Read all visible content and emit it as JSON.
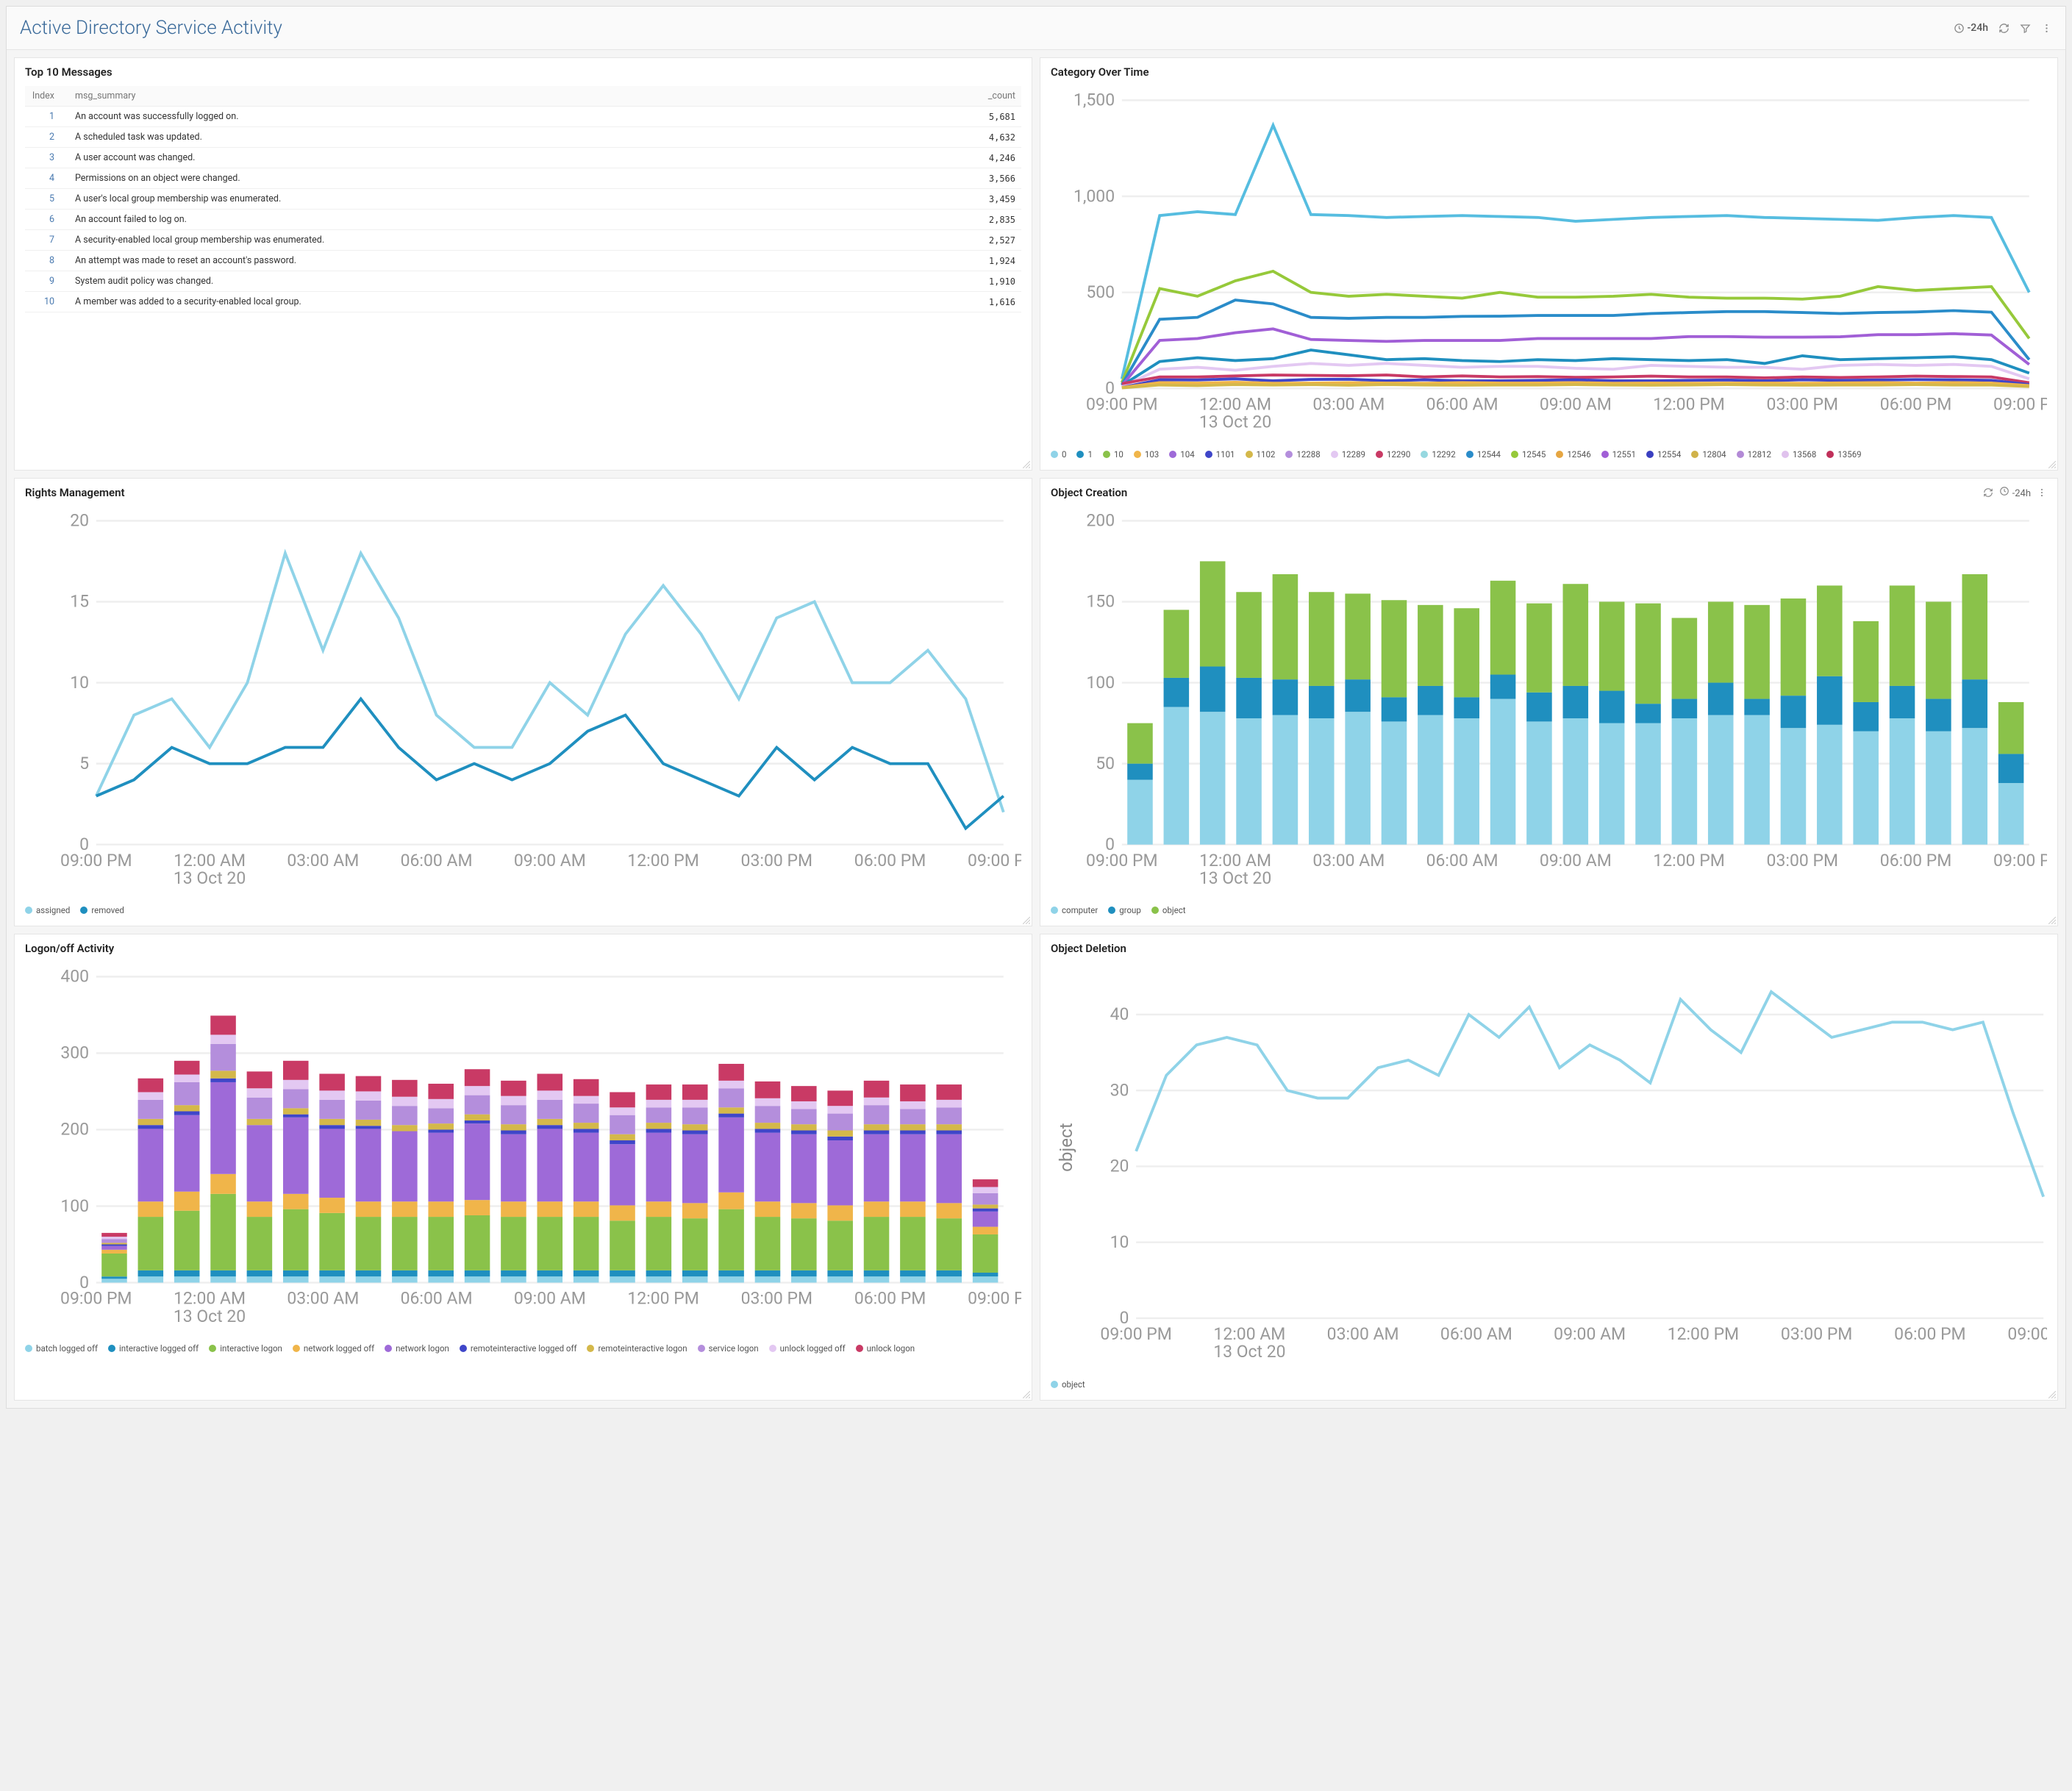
{
  "header": {
    "title": "Active Directory Service Activity",
    "time_range": "-24h"
  },
  "time_axis": {
    "labels": [
      "09:00 PM",
      "12:00 AM",
      "03:00 AM",
      "06:00 AM",
      "09:00 AM",
      "12:00 PM",
      "03:00 PM",
      "06:00 PM",
      "09:00 PM"
    ],
    "sub_label": "13 Oct 20"
  },
  "panels": {
    "top_messages": {
      "title": "Top 10 Messages",
      "columns": [
        "Index",
        "msg_summary",
        "_count"
      ],
      "rows": [
        [
          1,
          "An account was successfully logged on.",
          "5,681"
        ],
        [
          2,
          "A scheduled task was updated.",
          "4,632"
        ],
        [
          3,
          "A user account was changed.",
          "4,246"
        ],
        [
          4,
          "Permissions on an object were changed.",
          "3,566"
        ],
        [
          5,
          "A user's local group membership was enumerated.",
          "3,459"
        ],
        [
          6,
          "An account failed to log on.",
          "2,835"
        ],
        [
          7,
          "A security-enabled local group membership was enumerated.",
          "2,527"
        ],
        [
          8,
          "An attempt was made to reset an account's password.",
          "1,924"
        ],
        [
          9,
          "System audit policy was changed.",
          "1,910"
        ],
        [
          10,
          "A member was added to a security-enabled local group.",
          "1,616"
        ]
      ]
    },
    "category_over_time": {
      "title": "Category Over Time",
      "type": "line",
      "ylim": [
        0,
        1500
      ],
      "ytick_step": 500,
      "legend": [
        {
          "label": "0",
          "color": "#8fd3e8"
        },
        {
          "label": "1",
          "color": "#1f8fbf"
        },
        {
          "label": "10",
          "color": "#8ac24a"
        },
        {
          "label": "103",
          "color": "#f0b54a"
        },
        {
          "label": "104",
          "color": "#9e6ad8"
        },
        {
          "label": "1101",
          "color": "#3f46c9"
        },
        {
          "label": "1102",
          "color": "#d4b84a"
        },
        {
          "label": "12288",
          "color": "#b48edc"
        },
        {
          "label": "12289",
          "color": "#e3c8f2"
        },
        {
          "label": "12290",
          "color": "#c93a65"
        },
        {
          "label": "12292",
          "color": "#96d8e0"
        },
        {
          "label": "12544",
          "color": "#2a8cc9"
        },
        {
          "label": "12545",
          "color": "#96c93a"
        },
        {
          "label": "12546",
          "color": "#e6a642"
        },
        {
          "label": "12551",
          "color": "#a15fd6"
        },
        {
          "label": "12554",
          "color": "#3a3fc0"
        },
        {
          "label": "12804",
          "color": "#d0b24a"
        },
        {
          "label": "12812",
          "color": "#b38ad6"
        },
        {
          "label": "13568",
          "color": "#e0c2ed"
        },
        {
          "label": "13569",
          "color": "#c0305a"
        }
      ],
      "series": [
        {
          "color": "#56bde0",
          "data": [
            50,
            900,
            920,
            905,
            1370,
            905,
            900,
            890,
            895,
            900,
            895,
            890,
            870,
            880,
            890,
            895,
            900,
            890,
            885,
            880,
            875,
            890,
            900,
            890,
            500
          ]
        },
        {
          "color": "#96c93a",
          "data": [
            30,
            520,
            480,
            560,
            610,
            500,
            480,
            490,
            480,
            470,
            500,
            475,
            475,
            480,
            490,
            475,
            470,
            470,
            465,
            480,
            530,
            510,
            520,
            530,
            260
          ]
        },
        {
          "color": "#2a8cc9",
          "data": [
            20,
            360,
            370,
            460,
            440,
            370,
            365,
            370,
            370,
            375,
            376,
            380,
            380,
            380,
            390,
            395,
            400,
            400,
            395,
            390,
            395,
            398,
            405,
            397,
            150
          ]
        },
        {
          "color": "#a15fd6",
          "data": [
            15,
            250,
            260,
            290,
            310,
            255,
            250,
            245,
            250,
            250,
            250,
            260,
            260,
            260,
            260,
            270,
            270,
            267,
            267,
            269,
            280,
            280,
            285,
            278,
            125
          ]
        },
        {
          "color": "#1f8fbf",
          "data": [
            15,
            140,
            160,
            145,
            155,
            200,
            175,
            150,
            155,
            145,
            140,
            150,
            145,
            155,
            150,
            145,
            150,
            130,
            170,
            150,
            155,
            160,
            165,
            150,
            80
          ]
        },
        {
          "color": "#e3c8f2",
          "data": [
            10,
            100,
            110,
            95,
            115,
            130,
            120,
            130,
            120,
            110,
            115,
            115,
            105,
            100,
            120,
            115,
            110,
            110,
            100,
            120,
            125,
            120,
            125,
            115,
            50
          ]
        },
        {
          "color": "#c93a65",
          "data": [
            25,
            60,
            60,
            65,
            70,
            68,
            66,
            70,
            60,
            65,
            60,
            62,
            58,
            60,
            64,
            60,
            60,
            55,
            60,
            57,
            60,
            64,
            62,
            60,
            30
          ]
        },
        {
          "color": "#3f46c9",
          "data": [
            5,
            45,
            44,
            50,
            40,
            47,
            48,
            40,
            45,
            40,
            40,
            42,
            45,
            40,
            40,
            42,
            44,
            40,
            45,
            42,
            44,
            46,
            45,
            42,
            20
          ]
        },
        {
          "color": "#f0b54a",
          "data": [
            5,
            30,
            28,
            32,
            27,
            28,
            30,
            28,
            27,
            30,
            28,
            28,
            30,
            27,
            28,
            27,
            28,
            28,
            27,
            29,
            30,
            28,
            30,
            28,
            15
          ]
        },
        {
          "color": "#d4b84a",
          "data": [
            3,
            18,
            15,
            20,
            18,
            20,
            17,
            20,
            18,
            17,
            18,
            18,
            20,
            18,
            17,
            18,
            20,
            18,
            17,
            18,
            18,
            20,
            18,
            18,
            10
          ]
        }
      ]
    },
    "rights_management": {
      "title": "Rights Management",
      "type": "line",
      "ylim": [
        0,
        20
      ],
      "ytick_step": 5,
      "legend": [
        {
          "label": "assigned",
          "color": "#8fd3e8"
        },
        {
          "label": "removed",
          "color": "#1f8fbf"
        }
      ],
      "series": [
        {
          "color": "#8fd3e8",
          "data": [
            3,
            8,
            9,
            6,
            10,
            18,
            12,
            18,
            14,
            8,
            6,
            6,
            10,
            8,
            13,
            16,
            13,
            9,
            14,
            15,
            10,
            10,
            12,
            9,
            2
          ]
        },
        {
          "color": "#1f8fbf",
          "data": [
            3,
            4,
            6,
            5,
            5,
            6,
            6,
            9,
            6,
            4,
            5,
            4,
            5,
            7,
            8,
            5,
            4,
            3,
            6,
            4,
            6,
            5,
            5,
            1,
            3
          ]
        }
      ]
    },
    "object_creation": {
      "title": "Object Creation",
      "type": "stacked-bar",
      "time_range": "-24h",
      "ylim": [
        0,
        200
      ],
      "ytick_step": 50,
      "legend": [
        {
          "label": "computer",
          "color": "#8fd3e8"
        },
        {
          "label": "group",
          "color": "#1f8fbf"
        },
        {
          "label": "object",
          "color": "#8ac24a"
        }
      ],
      "stacks": [
        [
          40,
          10,
          25
        ],
        [
          85,
          18,
          42
        ],
        [
          82,
          28,
          65
        ],
        [
          78,
          25,
          53
        ],
        [
          80,
          22,
          65
        ],
        [
          78,
          20,
          58
        ],
        [
          82,
          20,
          53
        ],
        [
          76,
          15,
          60
        ],
        [
          80,
          18,
          50
        ],
        [
          78,
          13,
          55
        ],
        [
          90,
          15,
          58
        ],
        [
          76,
          18,
          55
        ],
        [
          78,
          20,
          63
        ],
        [
          75,
          20,
          55
        ],
        [
          75,
          12,
          62
        ],
        [
          78,
          12,
          50
        ],
        [
          80,
          20,
          50
        ],
        [
          80,
          10,
          58
        ],
        [
          72,
          20,
          60
        ],
        [
          74,
          30,
          56
        ],
        [
          70,
          18,
          50
        ],
        [
          78,
          20,
          62
        ],
        [
          70,
          20,
          60
        ],
        [
          72,
          30,
          65
        ],
        [
          38,
          18,
          32
        ]
      ]
    },
    "logon_activity": {
      "title": "Logon/off Activity",
      "type": "stacked-bar",
      "ylim": [
        0,
        400
      ],
      "ytick_step": 100,
      "legend": [
        {
          "label": "batch logged off",
          "color": "#8fd3e8"
        },
        {
          "label": "interactive logged off",
          "color": "#1f8fbf"
        },
        {
          "label": "interactive logon",
          "color": "#8ac24a"
        },
        {
          "label": "network logged off",
          "color": "#f0b54a"
        },
        {
          "label": "network logon",
          "color": "#9e6ad8"
        },
        {
          "label": "remoteinteractive logged off",
          "color": "#3f46c9"
        },
        {
          "label": "remoteinteractive logon",
          "color": "#d4b84a"
        },
        {
          "label": "service logon",
          "color": "#b48edc"
        },
        {
          "label": "unlock logged off",
          "color": "#e3c8f2"
        },
        {
          "label": "unlock logon",
          "color": "#c93a65"
        }
      ],
      "stacks": [
        [
          5,
          3,
          30,
          5,
          5,
          2,
          2,
          5,
          3,
          5
        ],
        [
          8,
          8,
          70,
          20,
          95,
          5,
          8,
          25,
          10,
          18
        ],
        [
          8,
          8,
          78,
          25,
          100,
          5,
          8,
          30,
          10,
          18
        ],
        [
          8,
          8,
          100,
          26,
          120,
          5,
          10,
          35,
          12,
          25
        ],
        [
          8,
          8,
          70,
          20,
          100,
          0,
          8,
          28,
          12,
          22
        ],
        [
          8,
          8,
          80,
          20,
          100,
          4,
          8,
          25,
          12,
          25
        ],
        [
          8,
          8,
          75,
          20,
          90,
          5,
          8,
          25,
          12,
          22
        ],
        [
          8,
          8,
          70,
          20,
          95,
          4,
          8,
          25,
          12,
          20
        ],
        [
          8,
          8,
          70,
          20,
          92,
          0,
          8,
          25,
          12,
          22
        ],
        [
          8,
          8,
          70,
          20,
          90,
          4,
          8,
          20,
          12,
          20
        ],
        [
          8,
          8,
          72,
          20,
          100,
          4,
          8,
          25,
          12,
          22
        ],
        [
          8,
          8,
          70,
          20,
          88,
          5,
          8,
          25,
          12,
          20
        ],
        [
          8,
          8,
          70,
          20,
          95,
          5,
          8,
          25,
          12,
          22
        ],
        [
          8,
          8,
          70,
          20,
          90,
          5,
          8,
          25,
          10,
          22
        ],
        [
          8,
          8,
          65,
          20,
          80,
          5,
          8,
          25,
          10,
          20
        ],
        [
          8,
          8,
          70,
          20,
          90,
          5,
          8,
          20,
          10,
          20
        ],
        [
          8,
          8,
          68,
          20,
          90,
          5,
          8,
          22,
          10,
          20
        ],
        [
          8,
          8,
          80,
          22,
          98,
          5,
          8,
          25,
          10,
          22
        ],
        [
          8,
          8,
          70,
          20,
          90,
          5,
          8,
          22,
          10,
          22
        ],
        [
          8,
          8,
          68,
          20,
          90,
          5,
          8,
          20,
          10,
          20
        ],
        [
          8,
          8,
          65,
          20,
          85,
          5,
          8,
          22,
          10,
          20
        ],
        [
          8,
          8,
          70,
          20,
          88,
          5,
          8,
          25,
          10,
          22
        ],
        [
          8,
          8,
          70,
          20,
          88,
          5,
          8,
          20,
          10,
          22
        ],
        [
          8,
          8,
          68,
          20,
          90,
          5,
          8,
          22,
          10,
          20
        ],
        [
          8,
          5,
          50,
          10,
          20,
          4,
          5,
          15,
          8,
          10
        ]
      ]
    },
    "object_deletion": {
      "title": "Object Deletion",
      "type": "line",
      "ylabel": "object",
      "ylim": [
        0,
        45
      ],
      "ytick_step": 10,
      "legend": [
        {
          "label": "object",
          "color": "#8fd3e8"
        }
      ],
      "series": [
        {
          "color": "#8fd3e8",
          "data": [
            22,
            32,
            36,
            37,
            36,
            30,
            29,
            29,
            33,
            34,
            32,
            40,
            37,
            41,
            33,
            36,
            34,
            31,
            42,
            38,
            35,
            43,
            40,
            37,
            38,
            39,
            39,
            38,
            39,
            27,
            16
          ]
        }
      ]
    }
  }
}
